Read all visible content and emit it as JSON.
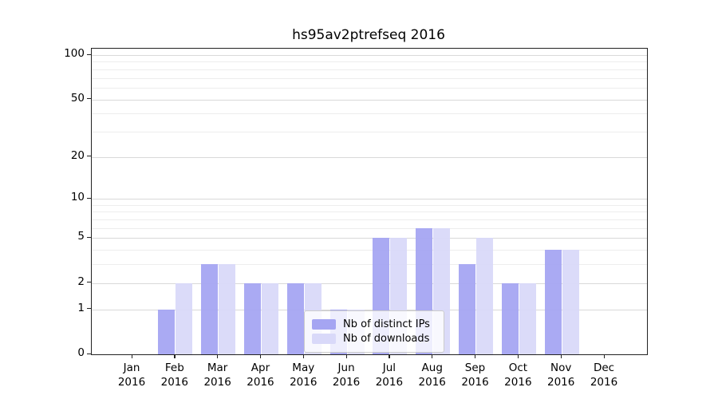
{
  "title": "hs95av2ptrefseq 2016",
  "colors": {
    "distinct_ips": "#a5a5f2",
    "downloads": "#d9d9f9",
    "grid_major": "#d9d9d9",
    "grid_minor": "#ededed",
    "spine": "#222222"
  },
  "legend": {
    "items": [
      {
        "label": "Nb of distinct IPs",
        "color": "#a5a5f2"
      },
      {
        "label": "Nb of downloads",
        "color": "#d9d9f9"
      }
    ]
  },
  "chart_data": {
    "type": "bar",
    "title": "hs95av2ptrefseq 2016",
    "categories": [
      "Jan 2016",
      "Feb 2016",
      "Mar 2016",
      "Apr 2016",
      "May 2016",
      "Jun 2016",
      "Jul 2016",
      "Aug 2016",
      "Sep 2016",
      "Oct 2016",
      "Nov 2016",
      "Dec 2016"
    ],
    "series": [
      {
        "name": "Nb of distinct IPs",
        "values": [
          0,
          1,
          3,
          2,
          2,
          1,
          5,
          6,
          3,
          2,
          4,
          0
        ]
      },
      {
        "name": "Nb of downloads",
        "values": [
          0,
          2,
          3,
          2,
          2,
          1,
          5,
          6,
          5,
          2,
          4,
          0
        ]
      }
    ],
    "xlabel": "",
    "ylabel": "",
    "yscale": "log1p",
    "ylim": [
      0,
      100
    ],
    "yticks": [
      0,
      1,
      2,
      5,
      10,
      20,
      50,
      100
    ],
    "minor_gridlines": [
      3,
      4,
      6,
      7,
      8,
      9,
      30,
      40,
      60,
      70,
      80,
      90
    ],
    "grid": true,
    "legend_position": "lower center"
  }
}
